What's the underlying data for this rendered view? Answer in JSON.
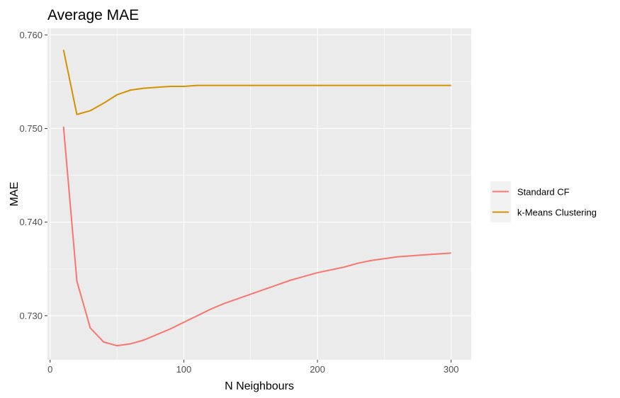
{
  "chart_data": {
    "type": "line",
    "title": "Average MAE",
    "xlabel": "N Neighbours",
    "ylabel": "MAE",
    "xlim": [
      -2,
      315
    ],
    "ylim": [
      0.7253,
      0.7607
    ],
    "x_ticks": [
      0,
      100,
      200,
      300
    ],
    "x_tick_labels": [
      "0",
      "100",
      "200",
      "300"
    ],
    "y_ticks": [
      0.73,
      0.74,
      0.75,
      0.76
    ],
    "y_tick_labels": [
      "0.730",
      "0.740",
      "0.750",
      "0.760"
    ],
    "grid": true,
    "legend_position": "right",
    "x": [
      10,
      20,
      30,
      40,
      50,
      60,
      70,
      80,
      90,
      100,
      110,
      120,
      130,
      140,
      150,
      160,
      170,
      180,
      190,
      200,
      210,
      220,
      230,
      240,
      250,
      260,
      270,
      280,
      290,
      300
    ],
    "series": [
      {
        "name": "Standard CF",
        "color": "#F8766D",
        "values": [
          0.7502,
          0.7337,
          0.7287,
          0.7272,
          0.7268,
          0.727,
          0.7274,
          0.728,
          0.7286,
          0.7293,
          0.73,
          0.7307,
          0.7313,
          0.7318,
          0.7323,
          0.7328,
          0.7333,
          0.7338,
          0.7342,
          0.7346,
          0.7349,
          0.7352,
          0.7356,
          0.7359,
          0.7361,
          0.7363,
          0.7364,
          0.7365,
          0.7366,
          0.7367
        ]
      },
      {
        "name": "k-Means Clustering",
        "color": "#D39200",
        "values": [
          0.7584,
          0.7515,
          0.7519,
          0.7527,
          0.7536,
          0.7541,
          0.7543,
          0.7544,
          0.7545,
          0.7545,
          0.7546,
          0.7546,
          0.7546,
          0.7546,
          0.7546,
          0.7546,
          0.7546,
          0.7546,
          0.7546,
          0.7546,
          0.7546,
          0.7546,
          0.7546,
          0.7546,
          0.7546,
          0.7546,
          0.7546,
          0.7546,
          0.7546,
          0.7546
        ]
      }
    ]
  },
  "colors": {
    "panel_background": "#EBEBEB",
    "grid_major": "#FFFFFF",
    "legend_key_background": "#F2F2F2"
  }
}
